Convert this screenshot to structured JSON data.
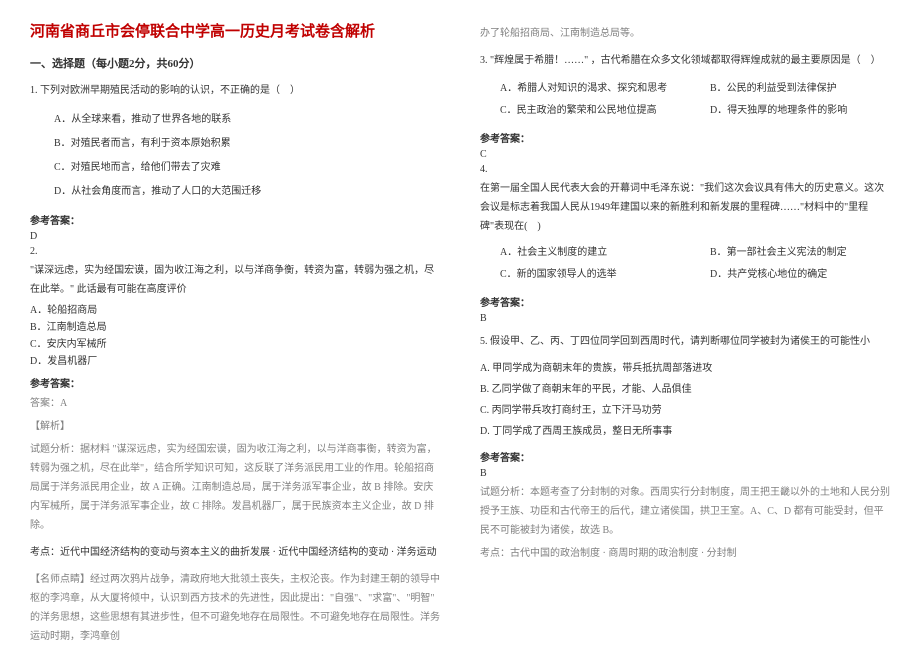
{
  "title": "河南省商丘市会停联合中学高一历史月考试卷含解析",
  "section1": "一、选择题（每小题2分，共60分）",
  "q1": {
    "stem": "1. 下列对欧洲早期殖民活动的影响的认识，不正确的是（　）",
    "a": "A．从全球来看，推动了世界各地的联系",
    "b": "B．对殖民者而言，有利于资本原始积累",
    "c": "C．对殖民地而言，给他们带去了灾难",
    "d": "D．从社会角度而言，推动了人口的大范围迁移"
  },
  "ansLabel": "参考答案：",
  "q1ans": "D",
  "q2": {
    "num": "2.",
    "stem": "\"谋深远虑，实为经国宏谟，固为收江海之利，以与洋商争衡，转资为富，转弱为强之机，尽在此举。\" 此话最有可能在高度评价",
    "a": "A．轮船招商局",
    "b": "B．江南制造总局",
    "c": "C．安庆内军械所",
    "d": "D．发昌机器厂"
  },
  "q2ans1": "答案：A",
  "q2expl": "【解析】",
  "q2ana": "试题分析：据材料 \"谋深远虑，实为经国宏谟，固为收江海之利，以与洋商事衡，转资为富，转弱为强之机，尽在此举\"，结合所学知识可知，这反联了洋务派民用工业的作用。轮船招商局属于洋务派民用企业，故 A 正确。江南制造总局，属于洋务派军事企业，故 B 排除。安庆内军械所，属于洋务派军事企业，故 C 排除。发昌机器厂，属于民族资本主义企业，故 D 排除。",
  "q2kp": "考点：近代中国经济结构的变动与资本主义的曲折发展 · 近代中国经济结构的变动 · 洋务运动",
  "q2tn": "【名师点睛】经过两次鸦片战争，清政府地大批领土丧失，主权沦丧。作为封建王朝的领导中枢的李鸿章，从大厦将倾中，认识到西方技术的先进性，因此提出：\"自强\"、\"求富\"、\"明智\" 的洋务思想，这些思想有其进步性，但不可避免地存在局限性。不可避免地存在局限性。洋务运动时期，李鸿章创",
  "col2top": "办了轮船招商局、江南制造总局等。",
  "q3": {
    "stem": "3. \"辉煌属于希腊！……\" ，古代希腊在众多文化领域都取得辉煌成就的最主要原因是（　）",
    "a": "A．希腊人对知识的渴求、探究和思考",
    "b": "B．公民的利益受到法律保护",
    "c": "C．民主政治的繁荣和公民地位提高",
    "d": "D．得天独厚的地理条件的影响"
  },
  "q3ans": "C",
  "q4": {
    "num": "4.",
    "stem": "在第一届全国人民代表大会的开幕词中毛泽东说：\"我们这次会议具有伟大的历史意义。这次会议是标志着我国人民从1949年建国以来的新胜利和新发展的里程碑……\"材料中的\"里程碑\"表现在(　)",
    "a": "A．社会主义制度的建立",
    "b": "B．第一部社会主义宪法的制定",
    "c": "C．新的国家领导人的选举",
    "d": "D．共产党核心地位的确定"
  },
  "q4ans": "B",
  "q5": {
    "stem": "5. 假设甲、乙、丙、丁四位同学回到西周时代，请判断哪位同学被封为诸侯王的可能性小",
    "a": "A. 甲同学成为商朝末年的贵族，带兵抵抗周部落进攻",
    "b": "B. 乙同学做了商朝末年的平民，才能、人品俱佳",
    "c": "C. 丙同学带兵攻打商纣王，立下汗马功劳",
    "d": "D. 丁同学成了西周王族成员，整日无所事事"
  },
  "q5ans": "B",
  "q5ana": "试题分析：本题考查了分封制的对象。西周实行分封制度，周王把王畿以外的土地和人民分别授予王族、功臣和古代帝王的后代，建立诸侯国，拱卫王室。A、C、D 都有可能受封，但平民不可能被封为诸侯，故选 B。",
  "q5kp": "考点：古代中国的政治制度 · 商周时期的政治制度 · 分封制",
  "colors": {
    "titleColor": "#c00000",
    "textColor": "#333333",
    "grayColor": "#808080",
    "background": "#ffffff"
  }
}
